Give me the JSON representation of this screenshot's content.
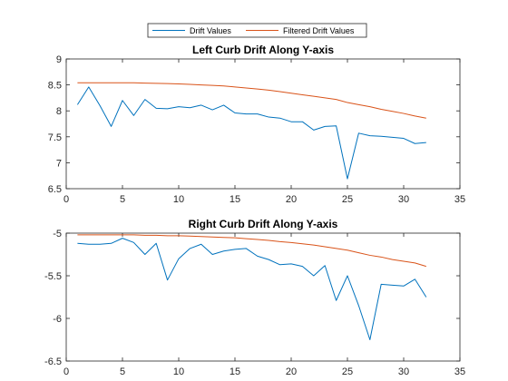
{
  "legend": {
    "placement": "top-center",
    "entries": [
      {
        "label": "Drift Values",
        "color": "#0072BD"
      },
      {
        "label": "Filtered Drift Values",
        "color": "#D95319"
      }
    ]
  },
  "chart_data": [
    {
      "type": "line",
      "title": "Left Curb Drift Along Y-axis",
      "xlabel": "",
      "ylabel": "",
      "xlim": [
        0,
        35
      ],
      "ylim": [
        6.5,
        9
      ],
      "xticks": [
        0,
        5,
        10,
        15,
        20,
        25,
        30,
        35
      ],
      "yticks": [
        6.5,
        7,
        7.5,
        8,
        8.5,
        9
      ],
      "grid": false,
      "x": [
        1,
        2,
        3,
        4,
        5,
        6,
        7,
        8,
        9,
        10,
        11,
        12,
        13,
        14,
        15,
        16,
        17,
        18,
        19,
        20,
        21,
        22,
        23,
        24,
        25,
        26,
        27,
        28,
        29,
        30,
        31,
        32
      ],
      "series": [
        {
          "legend_index": 0,
          "values": [
            8.12,
            8.46,
            8.1,
            7.7,
            8.2,
            7.91,
            8.22,
            8.05,
            8.04,
            8.08,
            8.06,
            8.11,
            8.02,
            8.11,
            7.96,
            7.94,
            7.94,
            7.88,
            7.86,
            7.79,
            7.79,
            7.63,
            7.7,
            7.71,
            6.69,
            7.57,
            7.52,
            7.51,
            7.49,
            7.47,
            7.37,
            7.39
          ]
        },
        {
          "legend_index": 1,
          "values": [
            8.54,
            8.54,
            8.54,
            8.54,
            8.54,
            8.54,
            8.535,
            8.53,
            8.525,
            8.52,
            8.51,
            8.5,
            8.49,
            8.48,
            8.46,
            8.44,
            8.42,
            8.4,
            8.37,
            8.34,
            8.31,
            8.28,
            8.25,
            8.22,
            8.16,
            8.12,
            8.08,
            8.03,
            7.99,
            7.95,
            7.9,
            7.86
          ]
        }
      ]
    },
    {
      "type": "line",
      "title": "Right Curb Drift Along Y-axis",
      "xlabel": "",
      "ylabel": "",
      "xlim": [
        0,
        35
      ],
      "ylim": [
        -6.5,
        -5
      ],
      "xticks": [
        0,
        5,
        10,
        15,
        20,
        25,
        30,
        35
      ],
      "yticks": [
        -6.5,
        -6,
        -5.5,
        -5
      ],
      "grid": false,
      "x": [
        1,
        2,
        3,
        4,
        5,
        6,
        7,
        8,
        9,
        10,
        11,
        12,
        13,
        14,
        15,
        16,
        17,
        18,
        19,
        20,
        21,
        22,
        23,
        24,
        25,
        26,
        27,
        28,
        29,
        30,
        31,
        32
      ],
      "series": [
        {
          "legend_index": 0,
          "values": [
            -5.12,
            -5.13,
            -5.13,
            -5.12,
            -5.06,
            -5.11,
            -5.25,
            -5.12,
            -5.55,
            -5.3,
            -5.18,
            -5.13,
            -5.25,
            -5.21,
            -5.19,
            -5.18,
            -5.27,
            -5.31,
            -5.37,
            -5.36,
            -5.39,
            -5.5,
            -5.38,
            -5.79,
            -5.5,
            -5.85,
            -6.25,
            -5.6,
            -5.61,
            -5.62,
            -5.54,
            -5.75
          ]
        },
        {
          "legend_index": 1,
          "values": [
            -5.02,
            -5.02,
            -5.02,
            -5.02,
            -5.02,
            -5.02,
            -5.025,
            -5.025,
            -5.03,
            -5.03,
            -5.035,
            -5.04,
            -5.045,
            -5.05,
            -5.055,
            -5.065,
            -5.075,
            -5.085,
            -5.1,
            -5.11,
            -5.125,
            -5.14,
            -5.16,
            -5.18,
            -5.2,
            -5.23,
            -5.26,
            -5.28,
            -5.31,
            -5.33,
            -5.35,
            -5.39
          ]
        }
      ]
    }
  ]
}
